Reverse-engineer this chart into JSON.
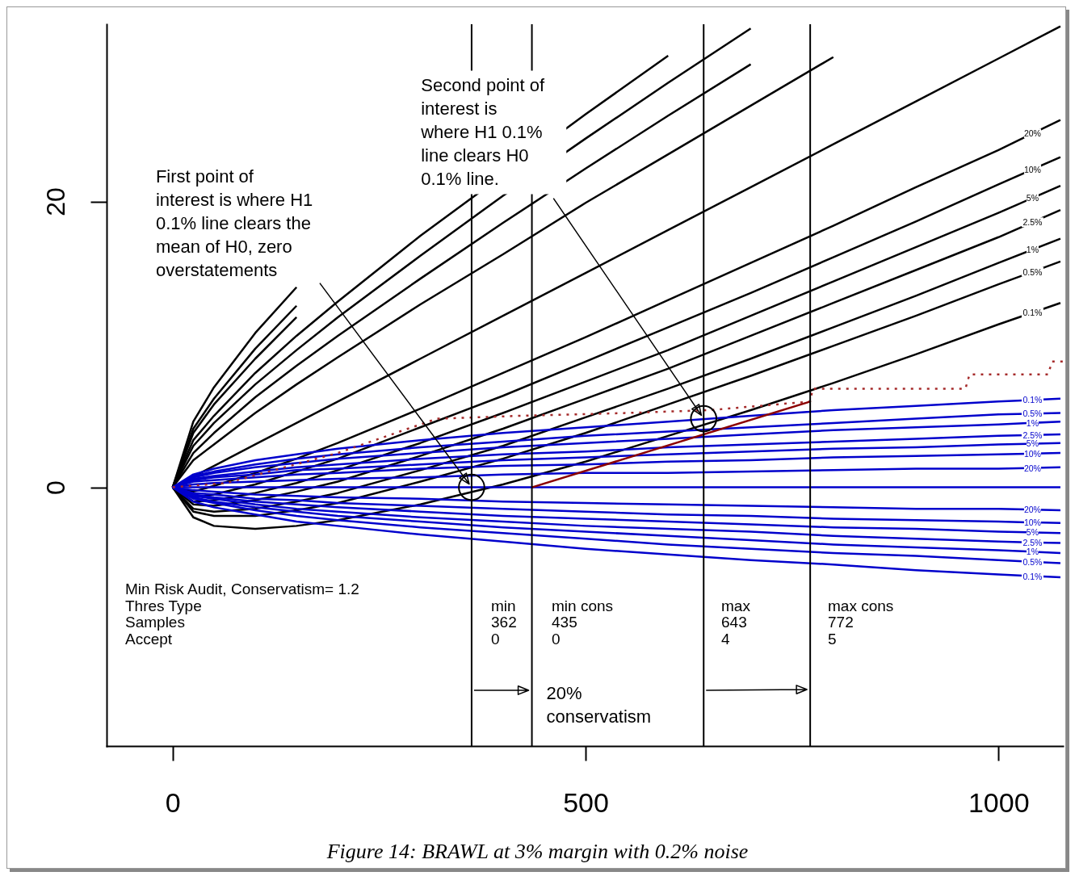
{
  "chart_data": {
    "type": "line",
    "title": "Figure 14: BRAWL at 3% margin with 0.2% noise",
    "x": [
      0,
      25,
      50,
      100,
      150,
      200,
      300,
      400,
      500,
      600,
      700,
      800,
      900,
      1000,
      1075
    ],
    "xlim": [
      -80,
      1078
    ],
    "ylim": [
      -18.1,
      32.4
    ],
    "xticks": [
      0,
      500,
      1000
    ],
    "yticks": [
      0,
      20
    ],
    "grid": false,
    "series": [
      {
        "color": "#000000",
        "values": [
          0,
          0.75,
          1.5,
          3,
          4.5,
          6,
          9,
          12,
          15,
          18,
          21,
          24,
          27,
          30,
          32.25
        ]
      },
      {
        "color": "#000000",
        "values": [
          0,
          1.9,
          3.0,
          5.2,
          7.2,
          9.1,
          12.8,
          16.3,
          19.9,
          23.3,
          26.7,
          30.1,
          null,
          null,
          null
        ]
      },
      {
        "color": "#000000",
        "values": [
          0,
          2.4,
          3.8,
          6.3,
          8.5,
          10.6,
          14.6,
          18.5,
          22.3,
          26.0,
          29.6,
          null,
          null,
          null,
          null
        ]
      },
      {
        "color": "#000000",
        "values": [
          0,
          2.9,
          4.5,
          7.2,
          9.6,
          11.9,
          16.2,
          20.4,
          24.4,
          28.3,
          32.1,
          null,
          null,
          null,
          null
        ]
      },
      {
        "color": "#000000",
        "values": [
          0,
          3.3,
          5.0,
          8.0,
          10.6,
          13.0,
          17.6,
          null,
          26.1,
          30.2,
          null,
          null,
          null,
          null,
          null
        ]
      },
      {
        "color": "#000000",
        "values": [
          0,
          3.8,
          5.8,
          9.0,
          11.9,
          null,
          null,
          null,
          null,
          null,
          null,
          null,
          null,
          null,
          null
        ]
      },
      {
        "color": "#000000",
        "values": [
          0,
          4.1,
          6.2,
          9.7,
          12.7,
          null,
          null,
          null,
          null,
          null,
          null,
          null,
          null,
          null,
          null
        ]
      },
      {
        "color": "#000000",
        "values": [
          0,
          4.6,
          7.0,
          10.8,
          14.0,
          null,
          null,
          null,
          null,
          null,
          null,
          null,
          null,
          null,
          null
        ]
      },
      {
        "name": "20%",
        "color": "#000000",
        "values": [
          0,
          -0.3,
          0.1,
          1.0,
          2.0,
          3.1,
          5.5,
          8.0,
          10.5,
          13.1,
          15.7,
          18.3,
          21.0,
          23.6,
          25.7
        ]
      },
      {
        "name": "10%",
        "color": "#000000",
        "values": [
          0,
          -0.7,
          -0.5,
          0.2,
          1.1,
          2.0,
          4.2,
          6.4,
          8.8,
          11.2,
          13.6,
          16.1,
          18.6,
          21.2,
          23.1
        ]
      },
      {
        "name": "5%",
        "color": "#000000",
        "values": [
          0,
          -1.0,
          -0.9,
          -0.4,
          0.3,
          1.2,
          3.1,
          5.2,
          7.4,
          9.6,
          12.0,
          14.4,
          16.8,
          19.2,
          21.1
        ]
      },
      {
        "name": "2.5%",
        "color": "#000000",
        "values": [
          0,
          -1.2,
          -1.3,
          -0.9,
          -0.3,
          0.4,
          2.2,
          4.1,
          6.2,
          8.3,
          10.6,
          12.9,
          15.2,
          17.5,
          19.4
        ]
      },
      {
        "name": "1%",
        "color": "#000000",
        "values": [
          0,
          -1.5,
          -1.7,
          -1.5,
          -1.0,
          -0.4,
          1.2,
          2.9,
          4.9,
          6.9,
          9.0,
          11.2,
          13.4,
          15.7,
          17.4
        ]
      },
      {
        "name": "0.5%",
        "color": "#000000",
        "values": [
          0,
          -1.7,
          -2.0,
          -2.0,
          -1.6,
          -1.1,
          0.4,
          2.0,
          3.8,
          5.8,
          7.8,
          9.9,
          12.0,
          14.2,
          15.8
        ]
      },
      {
        "name": "0.1%",
        "color": "#000000",
        "values": [
          0,
          -2.1,
          -2.7,
          -2.9,
          -2.7,
          -2.3,
          -1.2,
          0.2,
          1.8,
          3.6,
          5.4,
          7.3,
          9.3,
          11.4,
          12.9
        ]
      },
      {
        "color": "#0000cc",
        "values": [
          0,
          0,
          0,
          0,
          0,
          0,
          0,
          0,
          0,
          0,
          0,
          0,
          0,
          0,
          0
        ]
      },
      {
        "name": "0.1%",
        "color": "#0000cc",
        "values": [
          0,
          0.9,
          1.3,
          1.9,
          2.3,
          2.7,
          3.3,
          3.8,
          4.2,
          4.6,
          5.0,
          5.4,
          5.7,
          6.0,
          6.2
        ]
      },
      {
        "name": "0.5%",
        "color": "#0000cc",
        "values": [
          0,
          0.8,
          1.1,
          1.6,
          2.0,
          2.3,
          2.8,
          3.2,
          3.6,
          3.9,
          4.2,
          4.5,
          4.8,
          5.1,
          5.2
        ]
      },
      {
        "name": "1%",
        "color": "#0000cc",
        "values": [
          0,
          0.7,
          1.0,
          1.4,
          1.7,
          2.0,
          2.4,
          2.8,
          3.1,
          3.4,
          3.7,
          4.0,
          4.2,
          4.4,
          4.6
        ]
      },
      {
        "name": "2.5%",
        "color": "#0000cc",
        "values": [
          0,
          0.6,
          0.8,
          1.1,
          1.4,
          1.6,
          2.0,
          2.3,
          2.5,
          2.8,
          3.0,
          3.2,
          3.4,
          3.6,
          3.7
        ]
      },
      {
        "name": "5%",
        "color": "#0000cc",
        "values": [
          0,
          0.5,
          0.7,
          0.9,
          1.2,
          1.3,
          1.6,
          1.9,
          2.1,
          2.3,
          2.5,
          2.7,
          2.8,
          3.0,
          3.1
        ]
      },
      {
        "name": "10%",
        "color": "#0000cc",
        "values": [
          0,
          0.4,
          0.5,
          0.7,
          0.9,
          1.0,
          1.3,
          1.5,
          1.6,
          1.8,
          1.9,
          2.1,
          2.2,
          2.3,
          2.4
        ]
      },
      {
        "name": "20%",
        "color": "#0000cc",
        "values": [
          0,
          0.2,
          0.3,
          0.4,
          0.5,
          0.6,
          0.7,
          0.9,
          1.0,
          1.0,
          1.1,
          1.2,
          1.3,
          1.3,
          1.4
        ]
      },
      {
        "name": "20%",
        "color": "#0000cc",
        "values": [
          0,
          -0.2,
          -0.3,
          -0.5,
          -0.6,
          -0.7,
          -0.8,
          -1.0,
          -1.1,
          -1.2,
          -1.3,
          -1.4,
          -1.5,
          -1.5,
          -1.6
        ]
      },
      {
        "name": "10%",
        "color": "#0000cc",
        "values": [
          0,
          -0.4,
          -0.5,
          -0.8,
          -0.9,
          -1.1,
          -1.3,
          -1.5,
          -1.7,
          -1.9,
          -2.0,
          -2.2,
          -2.3,
          -2.4,
          -2.5
        ]
      },
      {
        "name": "5%",
        "color": "#0000cc",
        "values": [
          0,
          -0.5,
          -0.7,
          -1.0,
          -1.2,
          -1.4,
          -1.7,
          -2.0,
          -2.2,
          -2.4,
          -2.6,
          -2.8,
          -2.9,
          -3.1,
          -3.2
        ]
      },
      {
        "name": "2.5%",
        "color": "#0000cc",
        "values": [
          0,
          -0.6,
          -0.8,
          -1.2,
          -1.5,
          -1.7,
          -2.1,
          -2.4,
          -2.7,
          -2.9,
          -3.1,
          -3.4,
          -3.6,
          -3.8,
          -3.9
        ]
      },
      {
        "name": "1%",
        "color": "#0000cc",
        "values": [
          0,
          -0.7,
          -1.0,
          -1.4,
          -1.7,
          -2.0,
          -2.4,
          -2.8,
          -3.1,
          -3.4,
          -3.7,
          -4.0,
          -4.2,
          -4.4,
          -4.6
        ]
      },
      {
        "name": "0.5%",
        "color": "#0000cc",
        "values": [
          0,
          -0.8,
          -1.1,
          -1.6,
          -2.0,
          -2.3,
          -2.8,
          -3.2,
          -3.6,
          -4.0,
          -4.3,
          -4.6,
          -4.8,
          -5.1,
          -5.3
        ]
      },
      {
        "name": "0.1%",
        "color": "#0000cc",
        "values": [
          0,
          -1.0,
          -1.4,
          -1.9,
          -2.4,
          -2.7,
          -3.3,
          -3.8,
          -4.3,
          -4.7,
          -5.1,
          -5.4,
          -5.8,
          -6.1,
          -6.3
        ]
      },
      {
        "color": "#a52a2a",
        "line_style": "dotted",
        "x": [
          0,
          65,
          200,
          320,
          420,
          550,
          650,
          772,
          775,
          960,
          965,
          1060,
          1065,
          1078
        ],
        "values": [
          0,
          0.3,
          2.4,
          4.8,
          5.0,
          5.2,
          5.4,
          6.0,
          6.9,
          6.9,
          7.9,
          7.9,
          8.8,
          8.8
        ]
      },
      {
        "color": "#8b0000",
        "x": [
          435,
          772
        ],
        "values": [
          0,
          6.0
        ]
      },
      {
        "type": "scatter",
        "marker": "circle",
        "color": "#000000",
        "x": [
          362,
          643
        ],
        "values": [
          0,
          4.8
        ]
      }
    ],
    "ref_lines": [
      {
        "axis": "x",
        "value": 362
      },
      {
        "axis": "x",
        "value": 435
      },
      {
        "axis": "x",
        "value": 643
      },
      {
        "axis": "x",
        "value": 772
      }
    ],
    "annotations": [
      {
        "text": "First point of\ninterest is where H1\n0.1% line clears the\nmean of H0, zero\noverstatements",
        "x": 362,
        "y": 0
      },
      {
        "text": "Second point of\ninterest is\nwhere H1 0.1%\nline clears H0\n0.1% line.",
        "x": 643,
        "y": 4.8
      },
      {
        "text": "20%\nconservatism",
        "x": 435,
        "y": -14.2
      },
      "Min Risk Audit, Conservatism= 1.2",
      "Thres Type",
      "Samples",
      "Accept",
      "min",
      "362",
      "0",
      "min cons",
      "435",
      "0",
      "max",
      "643",
      "4",
      "max cons",
      "772",
      "5"
    ]
  }
}
